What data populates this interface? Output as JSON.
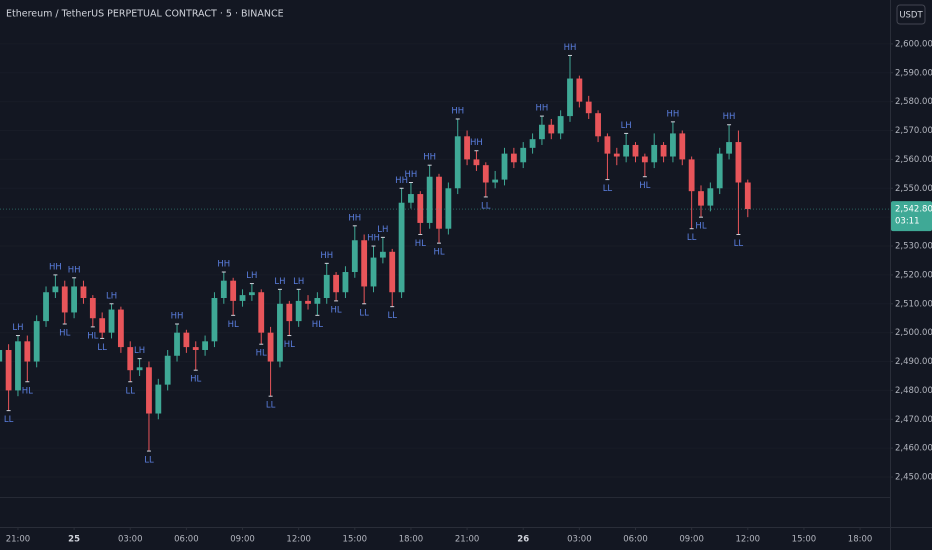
{
  "chart_data": {
    "type": "candlestick",
    "title": "Ethereum / TetherUS PERPETUAL CONTRACT · 5 · BINANCE",
    "currency": "USDT",
    "up_color": "#3fa996",
    "down_color": "#e8555a",
    "xlim": [
      20.04,
      67.6
    ],
    "ylim": [
      2432.7,
      2615.2
    ],
    "xticks": [
      {
        "value": 21,
        "label": "21:00"
      },
      {
        "value": 24,
        "label": "25"
      },
      {
        "value": 27,
        "label": "03:00"
      },
      {
        "value": 30,
        "label": "06:00"
      },
      {
        "value": 33,
        "label": "09:00"
      },
      {
        "value": 36,
        "label": "12:00"
      },
      {
        "value": 39,
        "label": "15:00"
      },
      {
        "value": 42,
        "label": "18:00"
      },
      {
        "value": 45,
        "label": "21:00"
      },
      {
        "value": 48,
        "label": "26"
      },
      {
        "value": 51,
        "label": "03:00"
      },
      {
        "value": 54,
        "label": "06:00"
      },
      {
        "value": 57,
        "label": "09:00"
      },
      {
        "value": 60,
        "label": "12:00"
      },
      {
        "value": 63,
        "label": "15:00"
      },
      {
        "value": 66,
        "label": "18:00"
      }
    ],
    "yticks": [
      {
        "value": 2450,
        "label": "2,450.00"
      },
      {
        "value": 2460,
        "label": "2,460.00"
      },
      {
        "value": 2470,
        "label": "2,470.00"
      },
      {
        "value": 2480,
        "label": "2,480.00"
      },
      {
        "value": 2490,
        "label": "2,490.00"
      },
      {
        "value": 2500,
        "label": "2,500.00"
      },
      {
        "value": 2510,
        "label": "2,510.00"
      },
      {
        "value": 2520,
        "label": "2,520.00"
      },
      {
        "value": 2530,
        "label": "2,530.00"
      },
      {
        "value": 2540,
        "label": "2,540.00"
      },
      {
        "value": 2550,
        "label": "2,550.00"
      },
      {
        "value": 2560,
        "label": "2,560.00"
      },
      {
        "value": 2570,
        "label": "2,570.00"
      },
      {
        "value": 2580,
        "label": "2,580.00"
      },
      {
        "value": 2590,
        "label": "2,590.00"
      },
      {
        "value": 2600,
        "label": "2,600.00"
      }
    ],
    "x": [
      20.0,
      20.5,
      21.0,
      21.5,
      22.0,
      22.5,
      23.0,
      23.5,
      24.0,
      24.5,
      25.0,
      25.5,
      26.0,
      26.5,
      27.0,
      27.5,
      28.0,
      28.5,
      29.0,
      29.5,
      30.0,
      30.5,
      31.0,
      31.5,
      32.0,
      32.5,
      33.0,
      33.5,
      34.0,
      34.5,
      35.0,
      35.5,
      36.0,
      36.5,
      37.0,
      37.5,
      38.0,
      38.5,
      39.0,
      39.5,
      40.0,
      40.5,
      41.0,
      41.5,
      42.0,
      42.5,
      43.0,
      43.5,
      44.0,
      44.5,
      45.0,
      45.5,
      46.0,
      46.5,
      47.0,
      47.5,
      48.0,
      48.5,
      49.0,
      49.5,
      50.0,
      50.5,
      51.0,
      51.5,
      52.0,
      52.5,
      53.0,
      53.5,
      54.0,
      54.5,
      55.0,
      55.5,
      56.0,
      56.5,
      57.0,
      57.5,
      58.0,
      58.5,
      59.0,
      59.5,
      60.0
    ],
    "open": [
      2490,
      2494,
      2480,
      2497,
      2490,
      2504,
      2514,
      2516,
      2507,
      2516,
      2512,
      2505,
      2500,
      2508,
      2495,
      2487,
      2488,
      2472,
      2482,
      2492,
      2500,
      2495,
      2494,
      2497,
      2512,
      2518,
      2511,
      2513,
      2514,
      2500,
      2490,
      2510,
      2504,
      2511,
      2510,
      2512,
      2520,
      2514,
      2521,
      2532,
      2516,
      2526,
      2528,
      2514,
      2545,
      2548,
      2538,
      2554,
      2536,
      2550,
      2568,
      2560,
      2558,
      2552,
      2553,
      2562,
      2559,
      2564,
      2567,
      2572,
      2569,
      2575,
      2588,
      2580,
      2576,
      2568,
      2562,
      2561,
      2565,
      2561,
      2559,
      2565,
      2561,
      2569,
      2560,
      2549,
      2544,
      2550,
      2562,
      2566,
      2552
    ],
    "high": [
      2497,
      2496,
      2499,
      2499,
      2506,
      2516,
      2520,
      2518,
      2519,
      2518,
      2513,
      2507,
      2510,
      2509,
      2497,
      2491,
      2490,
      2484,
      2494,
      2503,
      2501,
      2497,
      2499,
      2514,
      2521,
      2519,
      2515,
      2517,
      2515,
      2502,
      2515,
      2511,
      2515,
      2513,
      2514,
      2524,
      2521,
      2523,
      2537,
      2534,
      2530,
      2533,
      2529,
      2550,
      2552,
      2549,
      2558,
      2555,
      2552,
      2574,
      2570,
      2563,
      2559,
      2556,
      2564,
      2564,
      2566,
      2569,
      2575,
      2574,
      2577,
      2596,
      2589,
      2582,
      2577,
      2569,
      2564,
      2569,
      2566,
      2562,
      2569,
      2566,
      2573,
      2570,
      2561,
      2551,
      2552,
      2564,
      2572,
      2570,
      2553
    ],
    "low": [
      2486,
      2473,
      2478,
      2483,
      2488,
      2502,
      2512,
      2503,
      2505,
      2510,
      2502,
      2498,
      2498,
      2493,
      2483,
      2485,
      2459,
      2470,
      2480,
      2490,
      2493,
      2487,
      2492,
      2495,
      2510,
      2506,
      2509,
      2511,
      2496,
      2478,
      2488,
      2499,
      2502,
      2508,
      2506,
      2510,
      2511,
      2512,
      2519,
      2510,
      2514,
      2524,
      2509,
      2512,
      2543,
      2534,
      2536,
      2531,
      2534,
      2548,
      2558,
      2556,
      2547,
      2550,
      2551,
      2557,
      2557,
      2562,
      2565,
      2567,
      2567,
      2573,
      2578,
      2574,
      2566,
      2553,
      2558,
      2559,
      2559,
      2554,
      2557,
      2559,
      2559,
      2558,
      2536,
      2540,
      2542,
      2548,
      2560,
      2534,
      2540
    ],
    "close": [
      2494,
      2480,
      2497,
      2490,
      2504,
      2514,
      2516,
      2507,
      2516,
      2512,
      2505,
      2500,
      2508,
      2495,
      2487,
      2488,
      2472,
      2482,
      2492,
      2500,
      2495,
      2494,
      2497,
      2512,
      2518,
      2511,
      2513,
      2514,
      2500,
      2490,
      2510,
      2504,
      2511,
      2510,
      2512,
      2520,
      2514,
      2521,
      2532,
      2516,
      2526,
      2528,
      2514,
      2545,
      2548,
      2538,
      2554,
      2536,
      2550,
      2568,
      2560,
      2558,
      2552,
      2553,
      2562,
      2559,
      2564,
      2567,
      2572,
      2569,
      2575,
      2588,
      2580,
      2576,
      2568,
      2562,
      2561,
      2565,
      2561,
      2559,
      2565,
      2561,
      2569,
      2560,
      2549,
      2544,
      2550,
      2562,
      2566,
      2552,
      2542.8
    ],
    "pivots": [
      {
        "x": 20.5,
        "y": 2473,
        "label": "LL"
      },
      {
        "x": 21.0,
        "y": 2499,
        "label": "LH"
      },
      {
        "x": 21.5,
        "y": 2483,
        "label": "HL"
      },
      {
        "x": 23.0,
        "y": 2520,
        "label": "HH"
      },
      {
        "x": 23.5,
        "y": 2503,
        "label": "HL"
      },
      {
        "x": 24.0,
        "y": 2519,
        "label": "HH"
      },
      {
        "x": 25.0,
        "y": 2502,
        "label": "HL"
      },
      {
        "x": 25.5,
        "y": 2498,
        "label": "LL"
      },
      {
        "x": 26.0,
        "y": 2510,
        "label": "LH"
      },
      {
        "x": 27.0,
        "y": 2483,
        "label": "LL"
      },
      {
        "x": 27.5,
        "y": 2491,
        "label": "LH"
      },
      {
        "x": 28.0,
        "y": 2459,
        "label": "LL"
      },
      {
        "x": 29.5,
        "y": 2503,
        "label": "HH"
      },
      {
        "x": 30.5,
        "y": 2487,
        "label": "HL"
      },
      {
        "x": 32.0,
        "y": 2521,
        "label": "HH"
      },
      {
        "x": 32.5,
        "y": 2506,
        "label": "HL"
      },
      {
        "x": 33.5,
        "y": 2517,
        "label": "LH"
      },
      {
        "x": 34.0,
        "y": 2496,
        "label": "HL"
      },
      {
        "x": 34.5,
        "y": 2478,
        "label": "LL"
      },
      {
        "x": 35.0,
        "y": 2515,
        "label": "LH"
      },
      {
        "x": 35.5,
        "y": 2499,
        "label": "HL"
      },
      {
        "x": 36.0,
        "y": 2515,
        "label": "LH"
      },
      {
        "x": 37.0,
        "y": 2506,
        "label": "HL"
      },
      {
        "x": 37.5,
        "y": 2524,
        "label": "HH"
      },
      {
        "x": 38.0,
        "y": 2511,
        "label": "HL"
      },
      {
        "x": 39.0,
        "y": 2537,
        "label": "HH"
      },
      {
        "x": 39.5,
        "y": 2510,
        "label": "LL"
      },
      {
        "x": 40.0,
        "y": 2530,
        "label": "HH"
      },
      {
        "x": 40.5,
        "y": 2533,
        "label": "LH"
      },
      {
        "x": 41.0,
        "y": 2509,
        "label": "LL"
      },
      {
        "x": 41.5,
        "y": 2550,
        "label": "HH"
      },
      {
        "x": 42.0,
        "y": 2552,
        "label": "HH"
      },
      {
        "x": 42.5,
        "y": 2534,
        "label": "HL"
      },
      {
        "x": 43.0,
        "y": 2558,
        "label": "HH"
      },
      {
        "x": 43.5,
        "y": 2531,
        "label": "HL"
      },
      {
        "x": 44.5,
        "y": 2574,
        "label": "HH"
      },
      {
        "x": 45.5,
        "y": 2563,
        "label": "HH"
      },
      {
        "x": 46.0,
        "y": 2547,
        "label": "LL"
      },
      {
        "x": 49.0,
        "y": 2575,
        "label": "HH"
      },
      {
        "x": 50.5,
        "y": 2596,
        "label": "HH"
      },
      {
        "x": 52.5,
        "y": 2553,
        "label": "LL"
      },
      {
        "x": 53.5,
        "y": 2569,
        "label": "LH"
      },
      {
        "x": 54.5,
        "y": 2554,
        "label": "HL"
      },
      {
        "x": 56.0,
        "y": 2573,
        "label": "HH"
      },
      {
        "x": 57.0,
        "y": 2536,
        "label": "LL"
      },
      {
        "x": 57.5,
        "y": 2540,
        "label": "HL"
      },
      {
        "x": 59.0,
        "y": 2572,
        "label": "HH"
      },
      {
        "x": 59.5,
        "y": 2534,
        "label": "LL"
      }
    ],
    "last_price": {
      "value": 2542.8,
      "label": "2,542.80"
    },
    "countdown": "03:11"
  }
}
